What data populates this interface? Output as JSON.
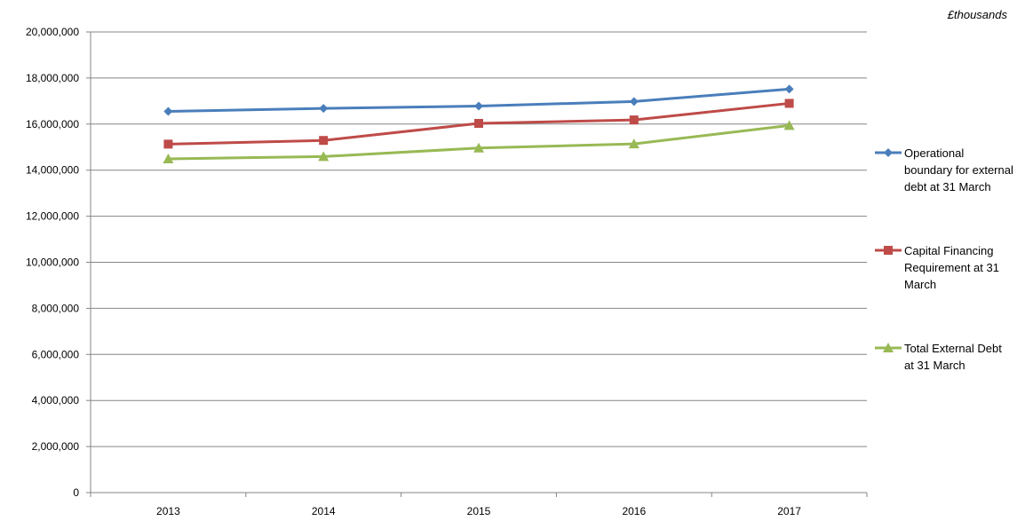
{
  "unit_label": "£thousands",
  "chart_data": {
    "type": "line",
    "title": "",
    "xlabel": "",
    "ylabel": "£thousands",
    "categories": [
      "2013",
      "2014",
      "2015",
      "2016",
      "2017"
    ],
    "ylim": [
      0,
      20000000
    ],
    "ytick_step": 2000000,
    "ytick_labels": [
      "0",
      "2,000,000",
      "4,000,000",
      "6,000,000",
      "8,000,000",
      "10,000,000",
      "12,000,000",
      "14,000,000",
      "16,000,000",
      "18,000,000",
      "20,000,000"
    ],
    "grid": true,
    "legend_position": "right",
    "series": [
      {
        "name": "Operational boundary for external debt at 31 March",
        "color": "#4a7ebb",
        "marker": "diamond",
        "values": [
          16550000,
          16680000,
          16780000,
          16980000,
          17520000
        ]
      },
      {
        "name": "Capital Financing Requirement at 31 March",
        "color": "#be4b48",
        "marker": "square",
        "values": [
          15130000,
          15290000,
          16030000,
          16180000,
          16900000
        ]
      },
      {
        "name": "Total External Debt at 31 March",
        "color": "#98b954",
        "marker": "triangle",
        "values": [
          14490000,
          14590000,
          14960000,
          15140000,
          15940000
        ]
      }
    ]
  }
}
